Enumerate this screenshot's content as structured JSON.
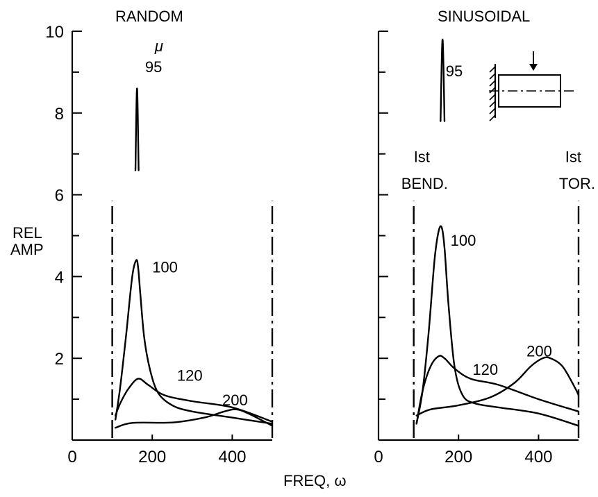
{
  "xlabel": "FREQ, ω",
  "ylabel_line1": "REL",
  "ylabel_line2": "AMP",
  "chart_data": [
    {
      "type": "line",
      "title": "RANDOM",
      "xlim": [
        0,
        500
      ],
      "ylim": [
        0,
        10
      ],
      "x_ticks": [
        0,
        200,
        400
      ],
      "y_ticks": [
        2,
        4,
        6,
        8,
        10
      ],
      "y_tick_labels": [
        "2",
        "4",
        "6",
        "8",
        "10"
      ],
      "series": [
        {
          "name": "100",
          "x": [
            108,
            120,
            135,
            150,
            160,
            165,
            170,
            180,
            195,
            215,
            250,
            300,
            400,
            500
          ],
          "y": [
            0.5,
            1.3,
            2.6,
            4.0,
            4.4,
            4.2,
            3.6,
            2.5,
            1.7,
            1.15,
            0.85,
            0.7,
            0.55,
            0.4
          ]
        },
        {
          "name": "120",
          "x": [
            108,
            120,
            140,
            165,
            190,
            230,
            300,
            400,
            500
          ],
          "y": [
            0.6,
            0.9,
            1.25,
            1.5,
            1.35,
            1.1,
            0.95,
            0.8,
            0.45
          ]
        },
        {
          "name": "200",
          "x": [
            108,
            150,
            250,
            330,
            380,
            410,
            440,
            500
          ],
          "y": [
            0.3,
            0.42,
            0.43,
            0.55,
            0.7,
            0.75,
            0.65,
            0.35
          ]
        },
        {
          "name": "95",
          "label_prefix": "μ",
          "x": [
            158,
            162,
            166
          ],
          "y": [
            6.6,
            8.6,
            6.6
          ]
        }
      ],
      "annotations": [
        {
          "type": "vertical-dash-dot",
          "x": 100
        },
        {
          "type": "vertical-dash-dot",
          "x": 500
        }
      ]
    },
    {
      "type": "line",
      "title": "SINUSOIDAL",
      "xlim": [
        0,
        500
      ],
      "ylim": [
        0,
        10
      ],
      "x_ticks": [
        0,
        200,
        400
      ],
      "y_ticks": [
        2,
        4,
        6,
        8,
        10
      ],
      "y_tick_labels": [],
      "series": [
        {
          "name": "100",
          "x": [
            95,
            110,
            125,
            140,
            150,
            158,
            165,
            175,
            190,
            210,
            240,
            300,
            400,
            500
          ],
          "y": [
            0.4,
            1.2,
            2.6,
            4.4,
            5.1,
            5.2,
            4.7,
            3.3,
            1.8,
            1.1,
            0.9,
            0.8,
            0.65,
            0.35
          ]
        },
        {
          "name": "120",
          "x": [
            95,
            110,
            130,
            150,
            165,
            190,
            230,
            300,
            400,
            500
          ],
          "y": [
            0.4,
            1.2,
            1.8,
            2.05,
            2.0,
            1.75,
            1.5,
            1.35,
            1.0,
            0.7
          ]
        },
        {
          "name": "200",
          "x": [
            95,
            130,
            200,
            280,
            340,
            380,
            410,
            430,
            460,
            490,
            500
          ],
          "y": [
            0.6,
            0.75,
            0.85,
            1.05,
            1.4,
            1.8,
            2.0,
            2.0,
            1.8,
            1.3,
            1.1
          ]
        },
        {
          "name": "95",
          "x": [
            155,
            160,
            165
          ],
          "y": [
            7.8,
            9.8,
            7.8
          ]
        }
      ],
      "annotations": [
        {
          "type": "vertical-dash-dot",
          "x": 88,
          "label_line1": "Ist",
          "label_line2": "BEND."
        },
        {
          "type": "vertical-dash-dot",
          "x": 500,
          "label_line1": "Ist",
          "label_line2": "TOR."
        }
      ]
    }
  ]
}
